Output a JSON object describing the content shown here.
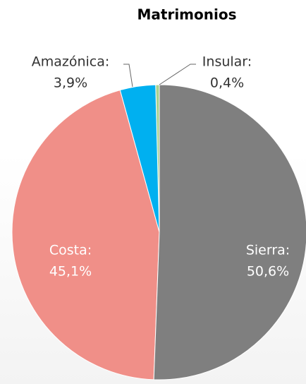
{
  "chart_data": {
    "type": "pie",
    "title": "Matrimonios",
    "categories": [
      "Sierra:",
      "Costa:",
      "Amazónica:",
      "Insular:"
    ],
    "values": [
      50.6,
      45.1,
      3.9,
      0.4
    ],
    "value_labels": [
      "50,6%",
      "45,1%",
      "3,9%",
      "0,4%"
    ],
    "colors": [
      "#7f7f7f",
      "#f08f88",
      "#00b0f0",
      "#a9d18e"
    ]
  }
}
